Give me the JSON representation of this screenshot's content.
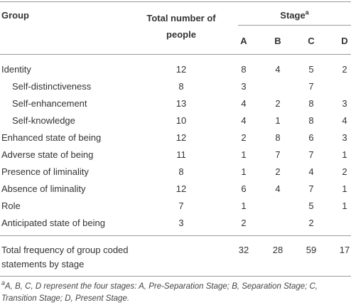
{
  "header": {
    "group": "Group",
    "total": "Total number of people",
    "stage": "Stage",
    "stage_marker": "a",
    "stages": [
      "A",
      "B",
      "C",
      "D"
    ]
  },
  "rows": [
    {
      "label": "Identity",
      "sub": false,
      "cells": [
        12,
        8,
        4,
        5,
        2
      ]
    },
    {
      "label": "Self-distinctiveness",
      "sub": true,
      "cells": [
        8,
        3,
        null,
        7,
        null
      ]
    },
    {
      "label": "Self-enhancement",
      "sub": true,
      "cells": [
        13,
        4,
        2,
        8,
        3
      ]
    },
    {
      "label": "Self-knowledge",
      "sub": true,
      "cells": [
        10,
        4,
        1,
        8,
        4
      ]
    },
    {
      "label": "Enhanced state of being",
      "sub": false,
      "cells": [
        12,
        2,
        8,
        6,
        3
      ]
    },
    {
      "label": "Adverse state of being",
      "sub": false,
      "cells": [
        11,
        1,
        7,
        7,
        1
      ]
    },
    {
      "label": "Presence of liminality",
      "sub": false,
      "cells": [
        8,
        1,
        2,
        4,
        2
      ]
    },
    {
      "label": "Absence of liminality",
      "sub": false,
      "cells": [
        12,
        6,
        4,
        7,
        1
      ]
    },
    {
      "label": "Role",
      "sub": false,
      "cells": [
        7,
        1,
        null,
        5,
        1
      ]
    },
    {
      "label": "Anticipated state of being",
      "sub": false,
      "cells": [
        3,
        2,
        null,
        2,
        null
      ]
    }
  ],
  "total_row": {
    "label": "Total frequency of group coded statements by stage",
    "cells": [
      null,
      32,
      28,
      59,
      17
    ]
  },
  "footnote": {
    "marker": "a",
    "text": "A, B, C, D represent the four stages: A, Pre-Separation Stage; B, Separation Stage; C, Transition Stage; D, Present Stage."
  }
}
